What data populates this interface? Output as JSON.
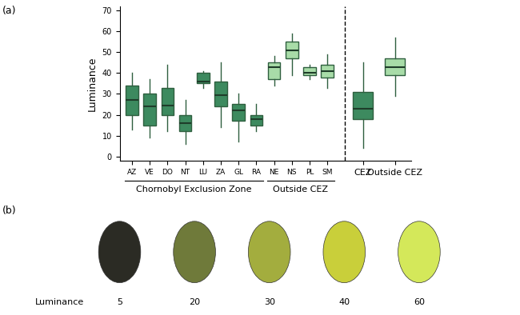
{
  "panel_labels": [
    "(a)",
    "(b)"
  ],
  "chart_data": {
    "type": "box",
    "ylabel": "Luminance",
    "ylim": [
      -2,
      72
    ],
    "yticks": [
      0,
      10,
      20,
      30,
      40,
      50,
      60,
      70
    ],
    "categories": [
      "AZ",
      "VE",
      "DO",
      "NT",
      "LU",
      "ZA",
      "GL",
      "RA",
      "NE",
      "NS",
      "PL",
      "SM",
      "CEZ",
      "Outside CEZ"
    ],
    "groups": [
      {
        "label": "Chornobyl Exclusion Zone",
        "categories": [
          "AZ",
          "VE",
          "DO",
          "NT",
          "LU",
          "ZA",
          "GL",
          "RA"
        ]
      },
      {
        "label": "Outside CEZ",
        "categories": [
          "NE",
          "NS",
          "PL",
          "SM"
        ]
      }
    ],
    "boxes": [
      {
        "min": 13,
        "q1": 20,
        "median": 27,
        "q3": 34,
        "max": 40,
        "color": "#3d8a5f"
      },
      {
        "min": 9,
        "q1": 15,
        "median": 24,
        "q3": 30,
        "max": 37,
        "color": "#3d8a5f"
      },
      {
        "min": 12,
        "q1": 20,
        "median": 24.5,
        "q3": 33,
        "max": 44,
        "color": "#3d8a5f"
      },
      {
        "min": 6,
        "q1": 12,
        "median": 16,
        "q3": 20,
        "max": 27,
        "color": "#3d8a5f"
      },
      {
        "min": 33,
        "q1": 35,
        "median": 36,
        "q3": 40,
        "max": 41,
        "color": "#3d8a5f"
      },
      {
        "min": 14,
        "q1": 24,
        "median": 29.5,
        "q3": 36,
        "max": 45,
        "color": "#3d8a5f"
      },
      {
        "min": 7,
        "q1": 17,
        "median": 22,
        "q3": 25,
        "max": 30,
        "color": "#3d8a5f"
      },
      {
        "min": 12,
        "q1": 15,
        "median": 18,
        "q3": 20,
        "max": 25,
        "color": "#3d8a5f"
      },
      {
        "min": 34,
        "q1": 37,
        "median": 43,
        "q3": 45,
        "max": 48,
        "color": "#a8dca8"
      },
      {
        "min": 39,
        "q1": 47,
        "median": 51,
        "q3": 55,
        "max": 59,
        "color": "#a8dca8"
      },
      {
        "min": 37,
        "q1": 39,
        "median": 40,
        "q3": 43,
        "max": 44,
        "color": "#a8dca8"
      },
      {
        "min": 33,
        "q1": 38,
        "median": 41,
        "q3": 44,
        "max": 49,
        "color": "#a8dca8"
      },
      {
        "min": 4,
        "q1": 18,
        "median": 23,
        "q3": 31,
        "max": 45,
        "color": "#3d8a5f"
      },
      {
        "min": 29,
        "q1": 39,
        "median": 43,
        "q3": 47,
        "max": 57,
        "color": "#a8dca8"
      }
    ]
  },
  "swatches": {
    "label": "Luminance",
    "values": [
      5,
      20,
      30,
      40,
      60
    ],
    "colors": [
      "#2b2b24",
      "#6f7a3a",
      "#a3ad3e",
      "#c9cf3a",
      "#d4e85a"
    ]
  }
}
